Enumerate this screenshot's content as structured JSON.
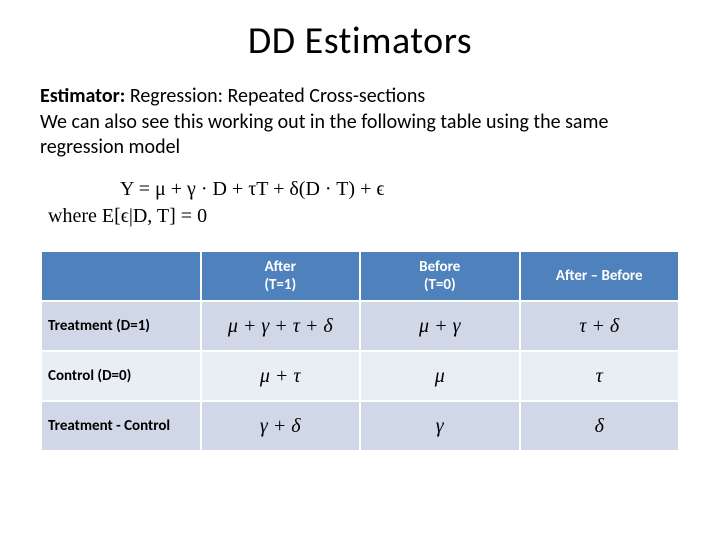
{
  "title": "DD Estimators",
  "subtitle_bold": "Estimator:",
  "subtitle_rest": " Regression: Repeated Cross-sections",
  "description": "We can also see this working out in the following table using the same regression model",
  "equation_main": "Y = μ + γ · D + τT + δ(D · T) + ϵ",
  "equation_where": "where  E[ϵ|D, T] = 0",
  "table": {
    "header_bg": "#4f81bd",
    "row_band_light": "#d0d8e8",
    "row_band_dark": "#e9edf4",
    "corner_bg": "#4f81bd",
    "columns": [
      "",
      "After\n(T=1)",
      "Before\n(T=0)",
      "After – Before"
    ],
    "rows": [
      {
        "label": "Treatment (D=1)",
        "cells": [
          "μ + γ + τ + δ",
          "μ + γ",
          "τ + δ"
        ]
      },
      {
        "label": "Control (D=0)",
        "cells": [
          "μ + τ",
          "μ",
          "τ"
        ]
      },
      {
        "label": "Treatment - Control",
        "cells": [
          "γ + δ",
          "γ",
          "δ"
        ]
      }
    ]
  }
}
